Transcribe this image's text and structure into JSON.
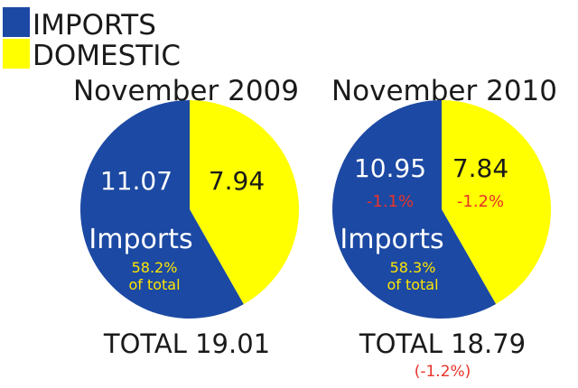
{
  "colors": {
    "imports": "#1c49a3",
    "domestic": "#ffff00",
    "text": "#1a1a1a",
    "white": "#ffffff",
    "negative": "#e8332a"
  },
  "chart_data": [
    {
      "type": "pie",
      "title": "November 2009",
      "series": [
        {
          "name": "IMPORTS",
          "value": 11.07,
          "label": "11.07",
          "change": ""
        },
        {
          "name": "DOMESTIC",
          "value": 7.94,
          "label": "7.94",
          "change": ""
        }
      ],
      "slice_name": "Imports",
      "share_pct": "58.2%",
      "share_note": "of total",
      "total_label": "TOTAL 19.01",
      "total_change": ""
    },
    {
      "type": "pie",
      "title": "November 2010",
      "series": [
        {
          "name": "IMPORTS",
          "value": 10.95,
          "label": "10.95",
          "change": "-1.1%"
        },
        {
          "name": "DOMESTIC",
          "value": 7.84,
          "label": "7.84",
          "change": "-1.2%"
        }
      ],
      "slice_name": "Imports",
      "share_pct": "58.3%",
      "share_note": "of total",
      "total_label": "TOTAL 18.79",
      "total_change": "(-1.2%)"
    }
  ],
  "legend": [
    {
      "label": "IMPORTS",
      "color": "#1c49a3"
    },
    {
      "label": "DOMESTIC",
      "color": "#ffff00"
    }
  ]
}
